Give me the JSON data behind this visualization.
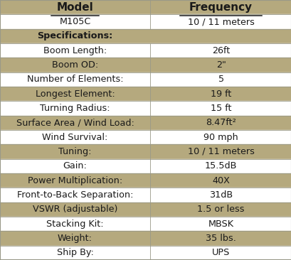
{
  "title_row": [
    "Model",
    "Frequency"
  ],
  "rows": [
    {
      "label": "M105C",
      "value": "10 / 11 meters",
      "bg": "white",
      "header": false
    },
    {
      "label": "Specifications:",
      "value": "",
      "bg": "#b5a97e",
      "header": true
    },
    {
      "label": "Boom Length:",
      "value": "26ft",
      "bg": "white",
      "header": false
    },
    {
      "label": "Boom OD:",
      "value": "2\"",
      "bg": "#b5a97e",
      "header": false
    },
    {
      "label": "Number of Elements:",
      "value": "5",
      "bg": "white",
      "header": false
    },
    {
      "label": "Longest Element:",
      "value": "19 ft",
      "bg": "#b5a97e",
      "header": false
    },
    {
      "label": "Turning Radius:",
      "value": "15 ft",
      "bg": "white",
      "header": false
    },
    {
      "label": "Surface Area / Wind Load:",
      "value": "8.47ft²",
      "bg": "#b5a97e",
      "header": false
    },
    {
      "label": "Wind Survival:",
      "value": "90 mph",
      "bg": "white",
      "header": false
    },
    {
      "label": "Tuning:",
      "value": "10 / 11 meters",
      "bg": "#b5a97e",
      "header": false
    },
    {
      "label": "Gain:",
      "value": "15.5dB",
      "bg": "white",
      "header": false
    },
    {
      "label": "Power Multiplication:",
      "value": "40X",
      "bg": "#b5a97e",
      "header": false
    },
    {
      "label": "Front-to-Back Separation:",
      "value": "31dB",
      "bg": "white",
      "header": false
    },
    {
      "label": "VSWR (adjustable)",
      "value": "1.5 or less",
      "bg": "#b5a97e",
      "header": false
    },
    {
      "label": "Stacking Kit:",
      "value": "MBSK",
      "bg": "white",
      "header": false
    },
    {
      "label": "Weight:",
      "value": "35 lbs.",
      "bg": "#b5a97e",
      "header": false
    },
    {
      "label": "Ship By:",
      "value": "UPS",
      "bg": "white",
      "header": false
    }
  ],
  "header_bg": "#b5a97e",
  "text_color": "#1a1a1a",
  "border_color": "#999988",
  "col_split": 0.515,
  "font_size": 9.2,
  "header_font_size": 11.0,
  "fig_width": 4.1,
  "fig_height": 3.66,
  "dpi": 100
}
